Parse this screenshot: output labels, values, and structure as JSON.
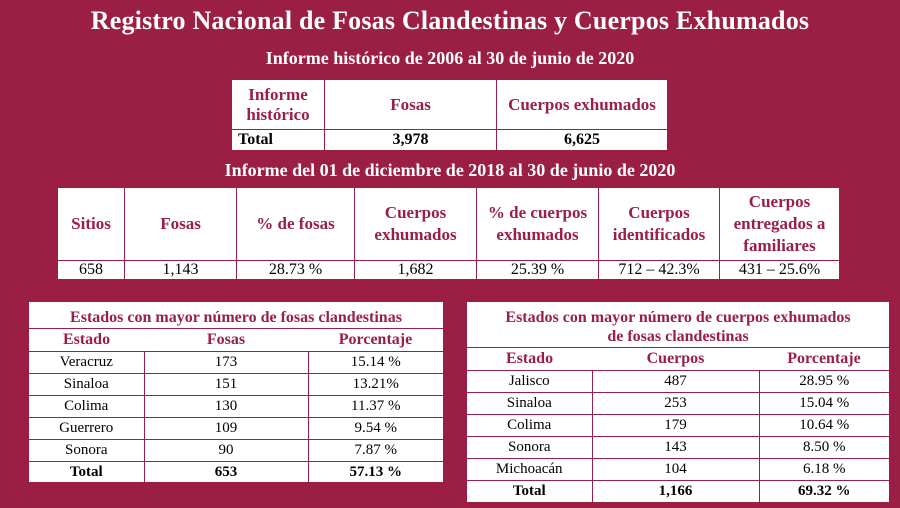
{
  "title": "Registro Nacional de Fosas Clandestinas y Cuerpos Exhumados",
  "historic": {
    "subtitle": "Informe histórico de 2006 al 30 de junio de 2020",
    "headers": [
      "Informe histórico",
      "Fosas",
      "Cuerpos exhumados"
    ],
    "total_label": "Total",
    "fosas": "3,978",
    "cuerpos": "6,625"
  },
  "recent": {
    "subtitle": "Informe del 01 de diciembre de 2018 al 30 de junio de 2020",
    "headers": [
      "Sitios",
      "Fosas",
      "% de fosas",
      "Cuerpos exhumados",
      "% de cuerpos exhumados",
      "Cuerpos identificados",
      "Cuerpos entregados a familiares"
    ],
    "values": [
      "658",
      "1,143",
      "28.73 %",
      "1,682",
      "25.39 %",
      "712 – 42.3%",
      "431 – 25.6%"
    ]
  },
  "fosas_table": {
    "title": "Estados con mayor número de fosas clandestinas",
    "headers": [
      "Estado",
      "Fosas",
      "Porcentaje"
    ],
    "rows": [
      [
        "Veracruz",
        "173",
        "15.14 %"
      ],
      [
        "Sinaloa",
        "151",
        "13.21%"
      ],
      [
        "Colima",
        "130",
        "11.37 %"
      ],
      [
        "Guerrero",
        "109",
        "9.54 %"
      ],
      [
        "Sonora",
        "90",
        "7.87 %"
      ]
    ],
    "total": [
      "Total",
      "653",
      "57.13 %"
    ]
  },
  "cuerpos_table": {
    "title": "Estados con mayor número de cuerpos exhumados de fosas clandestinas",
    "headers": [
      "Estado",
      "Cuerpos",
      "Porcentaje"
    ],
    "rows": [
      [
        "Jalisco",
        "487",
        "28.95 %"
      ],
      [
        "Sinaloa",
        "253",
        "15.04 %"
      ],
      [
        "Colima",
        "179",
        "10.64 %"
      ],
      [
        "Sonora",
        "143",
        "8.50 %"
      ],
      [
        "Michoacán",
        "104",
        "6.18 %"
      ]
    ],
    "total": [
      "Total",
      "1,166",
      "69.32 %"
    ]
  }
}
